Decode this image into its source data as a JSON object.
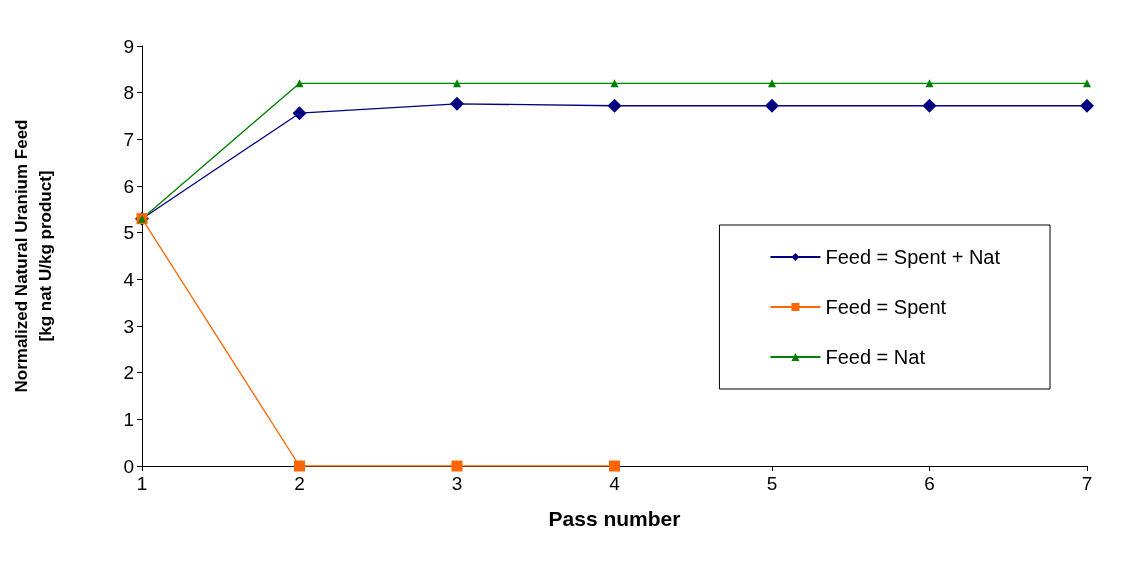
{
  "chart_data": {
    "type": "line",
    "xlabel": "Pass number",
    "ylabel": "Normalized Natural Uranium Feed\n[kg nat U/kg product]",
    "x": [
      1,
      2,
      3,
      4,
      5,
      6,
      7
    ],
    "xlim": [
      1,
      7
    ],
    "xticks": [
      1,
      2,
      3,
      4,
      5,
      6,
      7
    ],
    "ylim": [
      0,
      9
    ],
    "yticks": [
      0,
      1,
      2,
      3,
      4,
      5,
      6,
      7,
      8,
      9
    ],
    "grid": false,
    "legend": "right",
    "line_style": "solid",
    "series": [
      {
        "name": "Feed = Spent + Nat",
        "color": "#000080",
        "marker": "diamond",
        "values": [
          5.3,
          7.56,
          7.76,
          7.72,
          7.72,
          7.72,
          7.72
        ]
      },
      {
        "name": "Feed = Spent",
        "color": "#ff6600",
        "marker": "square",
        "values": [
          5.3,
          0,
          0,
          0,
          null,
          null,
          null
        ]
      },
      {
        "name": "Feed = Nat",
        "color": "#008000",
        "marker": "triangle",
        "values": [
          5.3,
          8.2,
          8.2,
          8.2,
          8.2,
          8.2,
          8.2
        ]
      }
    ]
  }
}
